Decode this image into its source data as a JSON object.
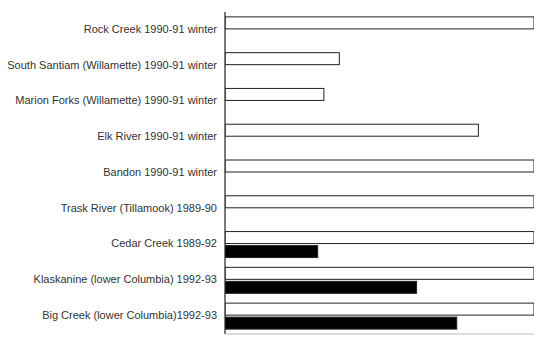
{
  "chart_data": {
    "type": "bar",
    "orientation": "horizontal",
    "categories": [
      "Rock Creek 1990-91 winter",
      "South Santiam (Willamette) 1990-91 winter",
      "Marion Forks (Willamette) 1990-91 winter",
      "Elk River 1990-91 winter",
      "Bandon 1990-91 winter",
      "Trask River (Tillamook) 1989-90",
      "Cedar Creek 1989-92",
      "Klaskanine (lower Columbia) 1992-93",
      "Big Creek (lower Columbia)1992-93"
    ],
    "series": [
      {
        "color": "white",
        "values": [
          100,
          37,
          32,
          82,
          100,
          100,
          100,
          100,
          100
        ]
      },
      {
        "color": "black",
        "values": [
          0,
          0,
          0,
          0,
          0,
          0,
          30,
          62,
          75
        ]
      }
    ],
    "xlim": [
      0,
      100
    ],
    "grid": false,
    "tick_labels": "y"
  }
}
